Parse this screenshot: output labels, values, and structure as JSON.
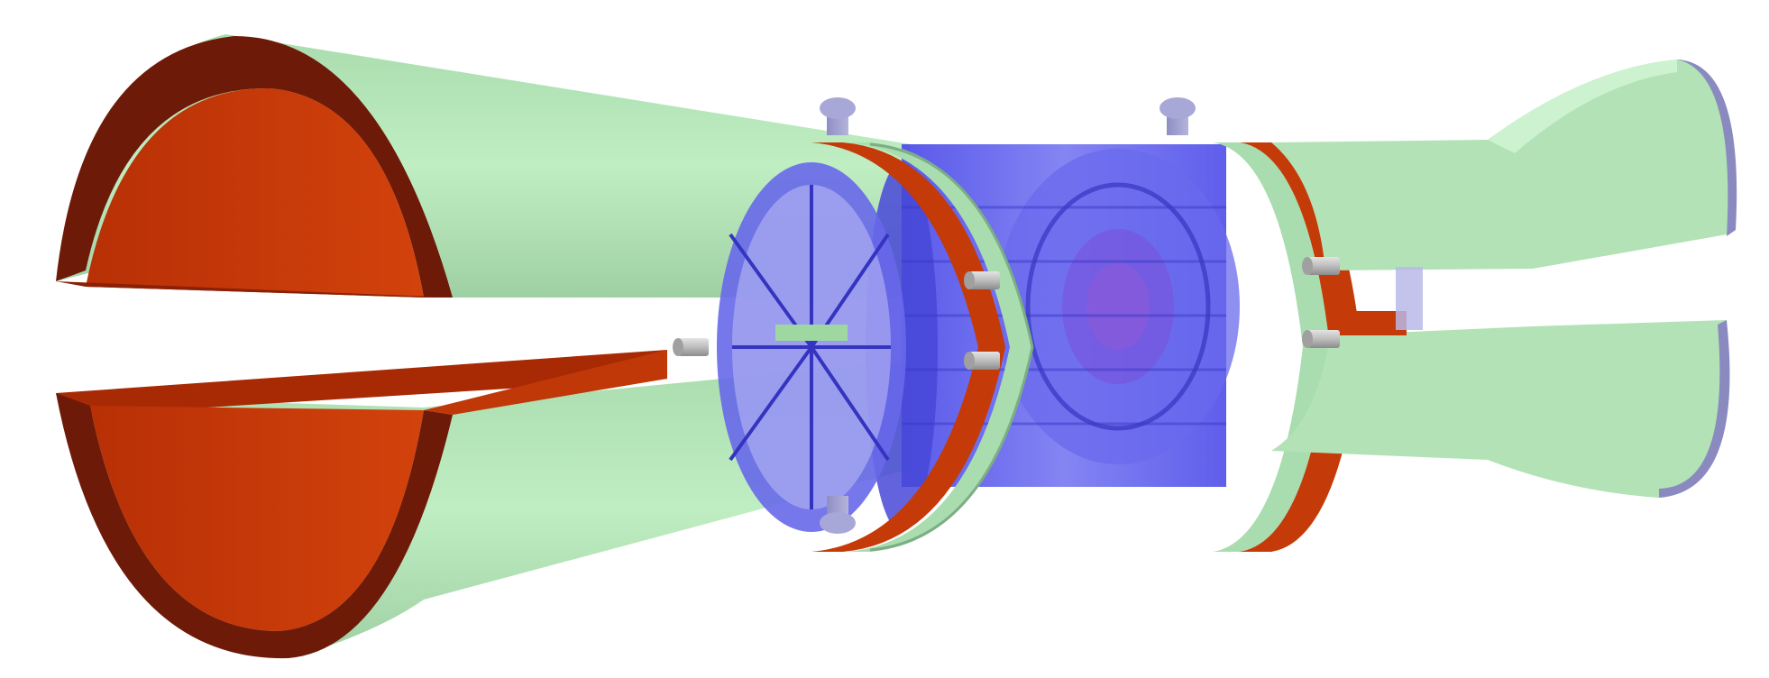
{
  "image": {
    "subject": "detector-3d-cutaway",
    "background": "#ffffff",
    "palette": {
      "funnel_outer": "#b4e6b8",
      "funnel_outer_shade": "#9fd3a5",
      "funnel_inner": "#c43a08",
      "funnel_rim": "#6e1a08",
      "core": "#5a5af0",
      "core_light": "#8c8cf5",
      "flange": "#9090c8",
      "pin": "#bfbfbf"
    }
  }
}
